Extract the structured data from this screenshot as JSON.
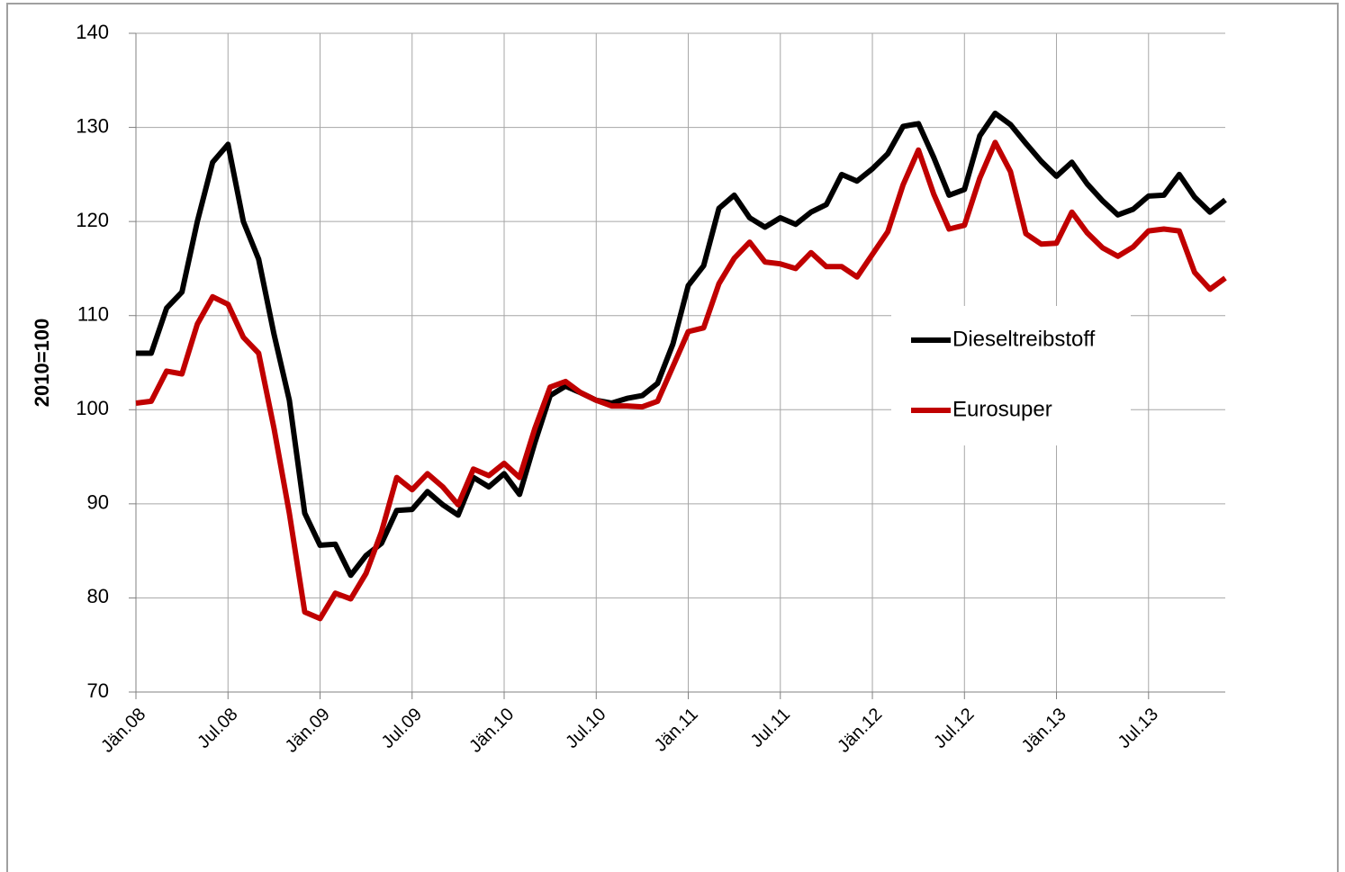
{
  "chart_data": {
    "type": "line",
    "y_label": "2010=100",
    "categories": [
      "Jän.08",
      null,
      null,
      null,
      null,
      null,
      "Jul.08",
      null,
      null,
      null,
      null,
      null,
      "Jän.09",
      null,
      null,
      null,
      null,
      null,
      "Jul.09",
      null,
      null,
      null,
      null,
      null,
      "Jän.10",
      null,
      null,
      null,
      null,
      null,
      "Jul.10",
      null,
      null,
      null,
      null,
      null,
      "Jän.11",
      null,
      null,
      null,
      null,
      null,
      "Jul.11",
      null,
      null,
      null,
      null,
      null,
      "Jän.12",
      null,
      null,
      null,
      null,
      null,
      "Jul.12",
      null,
      null,
      null,
      null,
      null,
      "Jän.13",
      null,
      null,
      null,
      null,
      null,
      "Jul.13",
      null,
      null,
      null,
      null,
      null
    ],
    "series": [
      {
        "name": "Dieseltreibstoff",
        "color": "#000000",
        "values": [
          106,
          106,
          110.8,
          112.5,
          120,
          126.3,
          128.2,
          120,
          116,
          108,
          101,
          89,
          85.6,
          85.7,
          82.4,
          84.5,
          85.8,
          89.3,
          89.4,
          91.3,
          89.9,
          88.8,
          92.8,
          91.8,
          93.2,
          91,
          96.5,
          101.5,
          102.5,
          101.8,
          101,
          100.7,
          101.2,
          101.5,
          102.8,
          107,
          113.2,
          115.3,
          121.4,
          122.8,
          120.4,
          119.4,
          120.4,
          119.7,
          121,
          121.8,
          125,
          124.3,
          125.6,
          127.2,
          130.1,
          130.4,
          126.8,
          122.8,
          123.4,
          129.1,
          131.5,
          130.3,
          128.3,
          126.4,
          124.8,
          126.3,
          124,
          122.2,
          120.7,
          121.3,
          122.7,
          122.8,
          125,
          122.6,
          121,
          122.3
        ]
      },
      {
        "name": "Eurosuper",
        "color": "#c00000",
        "values": [
          100.7,
          100.9,
          104.1,
          103.8,
          109.1,
          112,
          111.2,
          107.7,
          106,
          98,
          89,
          78.5,
          77.8,
          80.5,
          79.9,
          82.6,
          87,
          92.8,
          91.5,
          93.2,
          91.8,
          89.9,
          93.7,
          93,
          94.3,
          92.8,
          98,
          102.4,
          103,
          101.8,
          101,
          100.4,
          100.4,
          100.3,
          100.9,
          104.6,
          108.3,
          108.7,
          113.4,
          116.1,
          117.8,
          115.7,
          115.5,
          115,
          116.7,
          115.2,
          115.2,
          114.1,
          116.5,
          118.9,
          123.9,
          127.6,
          122.9,
          119.2,
          119.6,
          124.6,
          128.4,
          125.3,
          118.7,
          117.6,
          117.7,
          121,
          118.8,
          117.2,
          116.3,
          117.3,
          119,
          119.2,
          119,
          114.6,
          112.8,
          114
        ]
      }
    ],
    "ylim": [
      70,
      140
    ],
    "yticks": [
      70,
      80,
      90,
      100,
      110,
      120,
      130,
      140
    ],
    "grid": true,
    "legend": "right"
  }
}
